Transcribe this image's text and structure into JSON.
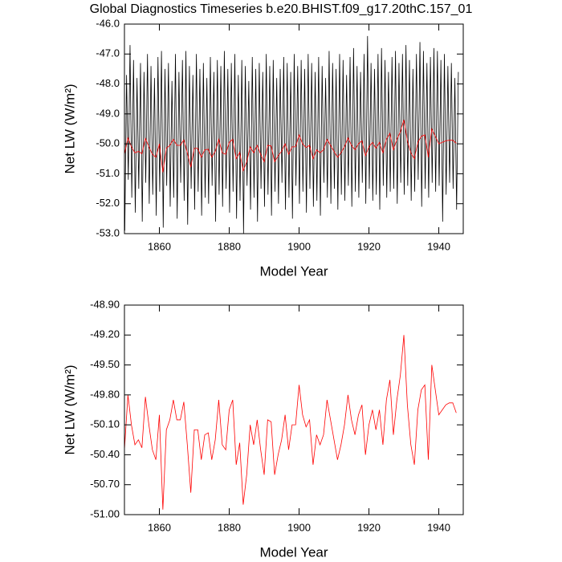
{
  "chart_data": [
    {
      "type": "line",
      "title": "Global Diagnostics Timeseries b.e20.BHIST.f09_g17.20thC.157_01",
      "xlabel": "Model Year",
      "ylabel": "Net LW (W/m²)",
      "xlim": [
        1850,
        1947
      ],
      "ylim": [
        -53,
        -46
      ],
      "xticks": [
        1860,
        1880,
        1900,
        1920,
        1940
      ],
      "yticks": [
        {
          "value": -46,
          "label": "-46.0"
        },
        {
          "value": -47,
          "label": "-47.0"
        },
        {
          "value": -48,
          "label": "-48.0"
        },
        {
          "value": -49,
          "label": "-49.0"
        },
        {
          "value": -50,
          "label": "-50.0"
        },
        {
          "value": -51,
          "label": "-51.0"
        },
        {
          "value": -52,
          "label": "-52.0"
        },
        {
          "value": -53,
          "label": "-53.0"
        }
      ],
      "series": [
        {
          "color": "#000000",
          "x": [
            1850.1,
            1850.6,
            1851.1,
            1851.6,
            1852.1,
            1852.6,
            1853.1,
            1853.6,
            1854.1,
            1854.6,
            1855.1,
            1855.6,
            1856.1,
            1856.6,
            1857.1,
            1857.6,
            1858.1,
            1858.6,
            1859.1,
            1859.6,
            1860.1,
            1860.6,
            1861.1,
            1861.6,
            1862.1,
            1862.6,
            1863.1,
            1863.6,
            1864.1,
            1864.6,
            1865.1,
            1865.6,
            1866.1,
            1866.6,
            1867.1,
            1867.6,
            1868.1,
            1868.6,
            1869.1,
            1869.6,
            1870.1,
            1870.6,
            1871.1,
            1871.6,
            1872.1,
            1872.6,
            1873.1,
            1873.6,
            1874.1,
            1874.6,
            1875.1,
            1875.6,
            1876.1,
            1876.6,
            1877.1,
            1877.6,
            1878.1,
            1878.6,
            1879.1,
            1879.6,
            1880.1,
            1880.6,
            1881.1,
            1881.6,
            1882.1,
            1882.6,
            1883.1,
            1883.6,
            1884.1,
            1884.6,
            1885.1,
            1885.6,
            1886.1,
            1886.6,
            1887.1,
            1887.6,
            1888.1,
            1888.6,
            1889.1,
            1889.6,
            1890.1,
            1890.6,
            1891.1,
            1891.6,
            1892.1,
            1892.6,
            1893.1,
            1893.6,
            1894.1,
            1894.6,
            1895.1,
            1895.6,
            1896.1,
            1896.6,
            1897.1,
            1897.6,
            1898.1,
            1898.6,
            1899.1,
            1899.6,
            1900.1,
            1900.6,
            1901.1,
            1901.6,
            1902.1,
            1902.6,
            1903.1,
            1903.6,
            1904.1,
            1904.6,
            1905.1,
            1905.6,
            1906.1,
            1906.6,
            1907.1,
            1907.6,
            1908.1,
            1908.6,
            1909.1,
            1909.6,
            1910.1,
            1910.6,
            1911.1,
            1911.6,
            1912.1,
            1912.6,
            1913.1,
            1913.6,
            1914.1,
            1914.6,
            1915.1,
            1915.6,
            1916.1,
            1916.6,
            1917.1,
            1917.6,
            1918.1,
            1918.6,
            1919.1,
            1919.6,
            1920.1,
            1920.6,
            1921.1,
            1921.6,
            1922.1,
            1922.6,
            1923.1,
            1923.6,
            1924.1,
            1924.6,
            1925.1,
            1925.6,
            1926.1,
            1926.6,
            1927.1,
            1927.6,
            1928.1,
            1928.6,
            1929.1,
            1929.6,
            1930.1,
            1930.6,
            1931.1,
            1931.6,
            1932.1,
            1932.6,
            1933.1,
            1933.6,
            1934.1,
            1934.6,
            1935.1,
            1935.6,
            1936.1,
            1936.6,
            1937.1,
            1937.6,
            1938.1,
            1938.6,
            1939.1,
            1939.6,
            1940.1,
            1940.6,
            1941.1,
            1941.6,
            1942.1,
            1942.6,
            1943.1,
            1943.6,
            1944.1,
            1944.6,
            1945.1,
            1945.6
          ],
          "values": [
            -52.9,
            -47.7,
            -51.2,
            -46.7,
            -51.8,
            -47.2,
            -52.3,
            -47.8,
            -51.5,
            -47.3,
            -52.6,
            -47.6,
            -51.3,
            -47.0,
            -52.0,
            -47.4,
            -51.7,
            -47.8,
            -52.4,
            -47.1,
            -51.6,
            -46.9,
            -52.8,
            -47.5,
            -51.4,
            -47.3,
            -52.1,
            -47.9,
            -51.8,
            -47.0,
            -52.5,
            -47.6,
            -51.3,
            -47.2,
            -51.9,
            -46.9,
            -52.7,
            -47.4,
            -51.5,
            -47.7,
            -52.2,
            -47.0,
            -51.6,
            -47.5,
            -52.4,
            -47.3,
            -51.8,
            -47.8,
            -52.0,
            -47.1,
            -51.4,
            -47.6,
            -52.6,
            -47.2,
            -51.7,
            -47.4,
            -52.1,
            -46.9,
            -51.5,
            -47.5,
            -52.3,
            -47.3,
            -51.6,
            -47.0,
            -52.5,
            -47.7,
            -51.9,
            -47.2,
            -53.0,
            -47.4,
            -51.4,
            -47.9,
            -52.2,
            -47.1,
            -51.8,
            -47.5,
            -52.6,
            -47.3,
            -51.5,
            -47.6,
            -52.1,
            -47.0,
            -51.7,
            -47.4,
            -52.4,
            -47.2,
            -51.6,
            -47.8,
            -52.0,
            -47.5,
            -51.3,
            -47.1,
            -52.2,
            -47.3,
            -51.8,
            -47.6,
            -52.5,
            -47.0,
            -51.4,
            -47.4,
            -52.0,
            -47.2,
            -51.6,
            -47.5,
            -52.3,
            -47.0,
            -51.5,
            -47.3,
            -52.1,
            -47.6,
            -51.9,
            -47.1,
            -52.4,
            -47.4,
            -51.3,
            -47.8,
            -51.8,
            -46.9,
            -52.0,
            -47.3,
            -51.5,
            -47.5,
            -52.2,
            -47.0,
            -51.7,
            -47.2,
            -51.9,
            -47.7,
            -51.4,
            -47.1,
            -52.1,
            -46.8,
            -51.6,
            -47.4,
            -51.8,
            -47.6,
            -51.3,
            -47.0,
            -52.0,
            -46.4,
            -51.5,
            -47.3,
            -51.9,
            -47.5,
            -51.7,
            -47.0,
            -52.2,
            -46.8,
            -51.4,
            -47.2,
            -51.8,
            -47.6,
            -51.6,
            -47.1,
            -51.5,
            -46.9,
            -52.0,
            -47.3,
            -51.3,
            -47.0,
            -51.7,
            -46.7,
            -51.4,
            -47.2,
            -51.9,
            -47.5,
            -51.6,
            -47.0,
            -51.2,
            -46.6,
            -52.1,
            -46.9,
            -51.5,
            -47.3,
            -51.8,
            -47.1,
            -51.3,
            -46.8,
            -51.6,
            -46.9,
            -51.4,
            -47.2,
            -52.6,
            -47.0,
            -51.7,
            -47.4,
            -51.3,
            -47.3,
            -51.5,
            -47.8,
            -52.2,
            -47.6
          ]
        },
        {
          "color": "#ff0000",
          "x": [
            1850,
            1851,
            1852,
            1853,
            1854,
            1855,
            1856,
            1857,
            1858,
            1859,
            1860,
            1861,
            1862,
            1863,
            1864,
            1865,
            1866,
            1867,
            1868,
            1869,
            1870,
            1871,
            1872,
            1873,
            1874,
            1875,
            1876,
            1877,
            1878,
            1879,
            1880,
            1881,
            1882,
            1883,
            1884,
            1885,
            1886,
            1887,
            1888,
            1889,
            1890,
            1891,
            1892,
            1893,
            1894,
            1895,
            1896,
            1897,
            1898,
            1899,
            1900,
            1901,
            1902,
            1903,
            1904,
            1905,
            1906,
            1907,
            1908,
            1909,
            1910,
            1911,
            1912,
            1913,
            1914,
            1915,
            1916,
            1917,
            1918,
            1919,
            1920,
            1921,
            1922,
            1923,
            1924,
            1925,
            1926,
            1927,
            1928,
            1929,
            1930,
            1931,
            1932,
            1933,
            1934,
            1935,
            1936,
            1937,
            1938,
            1939,
            1940,
            1941,
            1942,
            1943,
            1944,
            1945
          ],
          "values": [
            -50.35,
            -49.8,
            -50.1,
            -50.3,
            -50.25,
            -50.33,
            -49.82,
            -50.1,
            -50.35,
            -50.45,
            -50.0,
            -50.95,
            -50.15,
            -50.05,
            -49.85,
            -50.05,
            -50.05,
            -49.87,
            -50.3,
            -50.78,
            -50.15,
            -50.15,
            -50.45,
            -50.2,
            -50.18,
            -50.45,
            -50.25,
            -49.85,
            -50.3,
            -50.35,
            -49.95,
            -49.85,
            -50.5,
            -50.28,
            -50.9,
            -50.6,
            -50.1,
            -50.3,
            -50.05,
            -50.35,
            -50.6,
            -50.05,
            -50.07,
            -50.6,
            -50.4,
            -50.25,
            -50.0,
            -50.35,
            -50.1,
            -50.1,
            -49.7,
            -50.0,
            -50.12,
            -50.05,
            -50.5,
            -50.2,
            -50.3,
            -50.2,
            -49.85,
            -50.05,
            -50.25,
            -50.45,
            -50.3,
            -50.1,
            -49.8,
            -50.05,
            -50.2,
            -50.0,
            -49.9,
            -50.4,
            -50.1,
            -49.95,
            -50.15,
            -49.95,
            -50.3,
            -49.85,
            -49.65,
            -50.2,
            -49.85,
            -49.6,
            -49.2,
            -49.9,
            -50.3,
            -50.5,
            -49.95,
            -49.75,
            -49.7,
            -50.45,
            -49.5,
            -49.75,
            -50.0,
            -49.95,
            -49.9,
            -49.88,
            -49.88,
            -49.98
          ]
        }
      ]
    },
    {
      "type": "line",
      "xlabel": "Model Year",
      "ylabel": "Net LW (W/m²)",
      "xlim": [
        1850,
        1947
      ],
      "ylim": [
        -51,
        -48.9
      ],
      "xticks": [
        1860,
        1880,
        1900,
        1920,
        1940
      ],
      "yticks": [
        {
          "value": -48.9,
          "label": "-48.90"
        },
        {
          "value": -49.2,
          "label": "-49.20"
        },
        {
          "value": -49.5,
          "label": "-49.50"
        },
        {
          "value": -49.8,
          "label": "-49.80"
        },
        {
          "value": -50.1,
          "label": "-50.10"
        },
        {
          "value": -50.4,
          "label": "-50.40"
        },
        {
          "value": -50.7,
          "label": "-50.70"
        },
        {
          "value": -51,
          "label": "-51.00"
        }
      ],
      "series": [
        {
          "color": "#ff0000",
          "x": [
            1850,
            1851,
            1852,
            1853,
            1854,
            1855,
            1856,
            1857,
            1858,
            1859,
            1860,
            1861,
            1862,
            1863,
            1864,
            1865,
            1866,
            1867,
            1868,
            1869,
            1870,
            1871,
            1872,
            1873,
            1874,
            1875,
            1876,
            1877,
            1878,
            1879,
            1880,
            1881,
            1882,
            1883,
            1884,
            1885,
            1886,
            1887,
            1888,
            1889,
            1890,
            1891,
            1892,
            1893,
            1894,
            1895,
            1896,
            1897,
            1898,
            1899,
            1900,
            1901,
            1902,
            1903,
            1904,
            1905,
            1906,
            1907,
            1908,
            1909,
            1910,
            1911,
            1912,
            1913,
            1914,
            1915,
            1916,
            1917,
            1918,
            1919,
            1920,
            1921,
            1922,
            1923,
            1924,
            1925,
            1926,
            1927,
            1928,
            1929,
            1930,
            1931,
            1932,
            1933,
            1934,
            1935,
            1936,
            1937,
            1938,
            1939,
            1940,
            1941,
            1942,
            1943,
            1944,
            1945
          ],
          "values": [
            -50.35,
            -49.8,
            -50.1,
            -50.3,
            -50.25,
            -50.33,
            -49.82,
            -50.1,
            -50.35,
            -50.45,
            -50.0,
            -50.95,
            -50.15,
            -50.05,
            -49.85,
            -50.05,
            -50.05,
            -49.87,
            -50.3,
            -50.78,
            -50.15,
            -50.15,
            -50.45,
            -50.2,
            -50.18,
            -50.45,
            -50.25,
            -49.85,
            -50.3,
            -50.35,
            -49.95,
            -49.85,
            -50.5,
            -50.28,
            -50.9,
            -50.6,
            -50.1,
            -50.3,
            -50.05,
            -50.35,
            -50.6,
            -50.05,
            -50.07,
            -50.6,
            -50.4,
            -50.25,
            -50.0,
            -50.35,
            -50.1,
            -50.1,
            -49.7,
            -50.0,
            -50.12,
            -50.05,
            -50.5,
            -50.2,
            -50.3,
            -50.2,
            -49.85,
            -50.05,
            -50.25,
            -50.45,
            -50.3,
            -50.1,
            -49.8,
            -50.05,
            -50.2,
            -50.0,
            -49.9,
            -50.4,
            -50.1,
            -49.95,
            -50.15,
            -49.95,
            -50.3,
            -49.85,
            -49.65,
            -50.2,
            -49.85,
            -49.6,
            -49.2,
            -49.9,
            -50.3,
            -50.5,
            -49.95,
            -49.75,
            -49.7,
            -50.45,
            -49.5,
            -49.75,
            -50.0,
            -49.95,
            -49.9,
            -49.88,
            -49.88,
            -49.98
          ]
        }
      ]
    }
  ]
}
